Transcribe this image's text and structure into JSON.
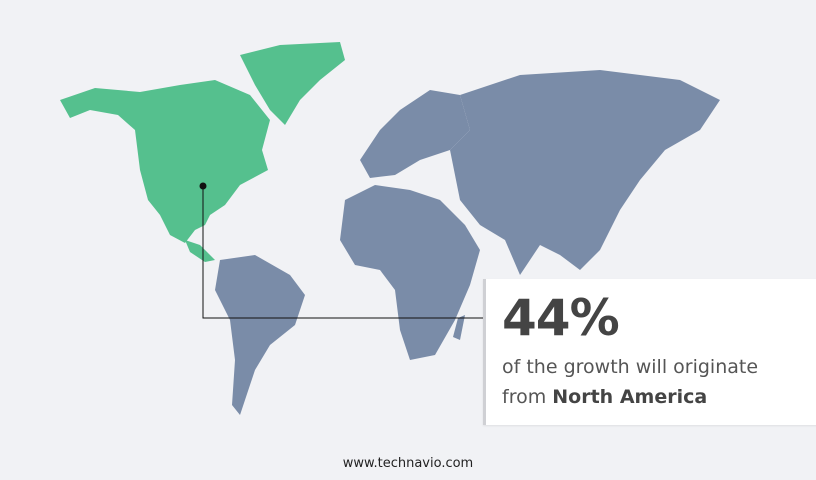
{
  "colors": {
    "highlight": "#55c08e",
    "other_regions": "#7a8ca8",
    "background": "#f1f2f5"
  },
  "highlighted_region": "North America",
  "callout": {
    "value": "44%",
    "text": "of the growth will originate",
    "prefix": "from",
    "region": "North America"
  },
  "footer": {
    "url": "www.technavio.com"
  }
}
